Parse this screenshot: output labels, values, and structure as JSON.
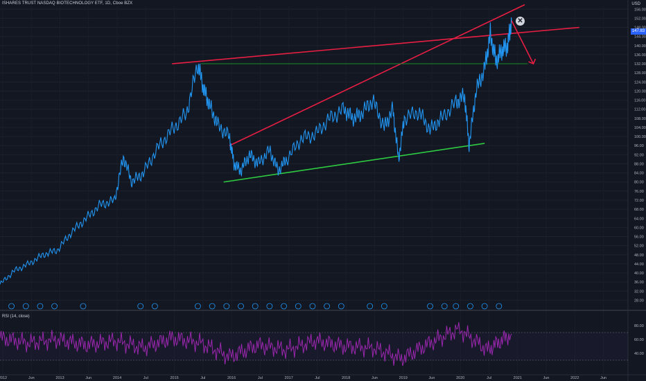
{
  "header": {
    "title": "ISHARES TRUST NASDAQ BIOTECHNOLOGY ETF, 1D, Cboe BZX",
    "currency": "USD",
    "rsi_label": "RSI (14, close)",
    "last_price": "147.83",
    "close_icon": "close-icon"
  },
  "colors": {
    "background": "#131722",
    "price_line": "#2196f3",
    "rsi_line": "#9c27b0",
    "resistance": "#e91e43",
    "support": "#2ecc40",
    "horizontal": "#1e8c2e",
    "axis_text": "#b2b5be"
  },
  "chart_data": [
    {
      "type": "line",
      "title": "ISHARES TRUST NASDAQ BIOTECHNOLOGY ETF, 1D, Cboe BZX",
      "ylabel": "USD",
      "y_ticks": [
        28,
        32,
        36,
        40,
        44,
        48,
        52,
        56,
        60,
        64,
        68,
        72,
        76,
        80,
        84,
        88,
        92,
        96,
        100,
        104,
        108,
        112,
        116,
        120,
        124,
        128,
        132,
        136,
        140,
        144,
        148,
        152,
        156
      ],
      "x_ticks": [
        "2012",
        "Jun",
        "2013",
        "Jun",
        "2014",
        "Jul",
        "2015",
        "Jul",
        "2016",
        "Jul",
        "2017",
        "Jul",
        "2018",
        "Jun",
        "2019",
        "Jun",
        "2020",
        "Jul",
        "2021",
        "Jun",
        "2022",
        "Jun"
      ],
      "ylim": [
        26,
        157
      ],
      "series": [
        {
          "x": [
            2012.0,
            2012.25,
            2012.5,
            2012.75,
            2013.0,
            2013.25,
            2013.5,
            2013.75,
            2014.0,
            2014.15,
            2014.3,
            2014.5,
            2014.75,
            2015.0,
            2015.25,
            2015.45,
            2015.55,
            2015.65,
            2015.8,
            2016.0,
            2016.08,
            2016.2,
            2016.35,
            2016.5,
            2016.7,
            2016.85,
            2017.0,
            2017.25,
            2017.5,
            2017.75,
            2018.0,
            2018.15,
            2018.3,
            2018.5,
            2018.7,
            2018.85,
            2018.95,
            2019.05,
            2019.3,
            2019.5,
            2019.7,
            2019.95,
            2020.1,
            2020.18,
            2020.3,
            2020.45,
            2020.55,
            2020.65,
            2020.75,
            2020.85,
            2020.92
          ],
          "values": [
            35,
            41,
            44,
            48,
            50,
            58,
            64,
            70,
            72,
            91,
            80,
            84,
            95,
            103,
            110,
            132,
            121,
            114,
            105,
            100,
            88,
            85,
            92,
            88,
            94,
            85,
            90,
            99,
            101,
            108,
            112,
            108,
            110,
            116,
            104,
            112,
            90,
            108,
            111,
            103,
            108,
            115,
            118,
            96,
            120,
            130,
            145,
            133,
            138,
            140,
            151
          ]
        },
        {
          "name": "RSI (14, close)",
          "x": [
            2012.0,
            2012.5,
            2013.0,
            2013.5,
            2014.0,
            2014.5,
            2015.0,
            2015.5,
            2016.0,
            2016.5,
            2017.0,
            2017.5,
            2018.0,
            2018.5,
            2019.0,
            2019.5,
            2020.0,
            2020.5,
            2020.92
          ],
          "values": [
            62,
            55,
            60,
            52,
            58,
            48,
            62,
            55,
            35,
            52,
            45,
            58,
            50,
            48,
            32,
            55,
            75,
            45,
            68
          ],
          "ylim": [
            15,
            88
          ],
          "y_ticks": [
            40,
            60,
            80
          ],
          "levels": [
            30,
            70
          ]
        }
      ],
      "annotations": {
        "resistance_lines": [
          {
            "x": [
              2016.0,
              2021.15
            ],
            "values": [
              96,
              158
            ]
          },
          {
            "x": [
              2015.0,
              2022.1
            ],
            "values": [
              132,
              148
            ]
          }
        ],
        "support_line": {
          "x": [
            2015.9,
            2020.45
          ],
          "values": [
            80,
            97
          ]
        },
        "horizontal_level": {
          "x": [
            2015.5,
            2021.2
          ],
          "values": [
            132,
            132
          ]
        },
        "arrow": {
          "x": [
            2020.92,
            2021.3
          ],
          "values": [
            151,
            132
          ]
        }
      }
    }
  ]
}
